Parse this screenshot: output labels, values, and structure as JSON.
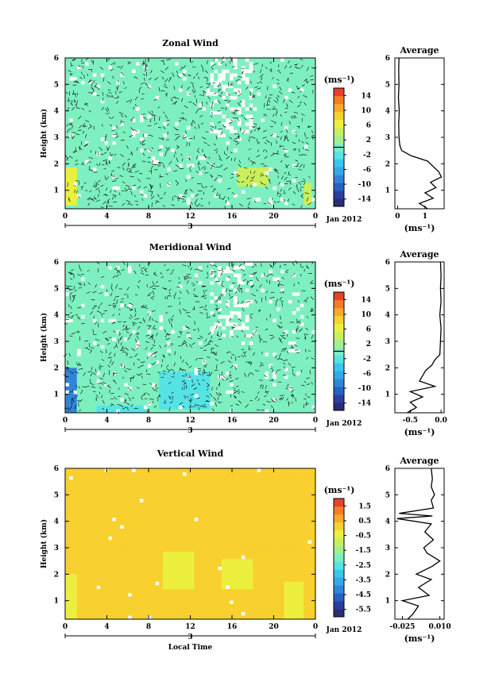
{
  "figure": {
    "x_axis_label": "Local Time",
    "date_label": "Jan 2012",
    "y_axis_label": "Height (km)",
    "average_title": "Average",
    "unit_label": "(ms⁻¹)"
  },
  "chart_data": [
    {
      "type": "heatmap",
      "title": "Zonal Wind",
      "xlabel": "",
      "ylabel": "Height (km)",
      "x_ticks": [
        "0",
        "4",
        "8",
        "12",
        "16",
        "20",
        "0"
      ],
      "day_label": "3",
      "date_label": "Jan 2012",
      "xlim": [
        0,
        24
      ],
      "ylim": [
        0.3,
        6.0
      ],
      "y_ticks": [
        "1",
        "2",
        "3",
        "4",
        "5",
        "6"
      ],
      "colorbar": {
        "unit": "(ms⁻¹)",
        "ticks": [
          "14",
          "10",
          "6",
          "2",
          "-2",
          "-6",
          "-10",
          "-14"
        ],
        "range": [
          -16,
          16
        ]
      },
      "dominant_value": 0,
      "patches": [
        {
          "t0": 0,
          "t1": 1.2,
          "h0": 0.4,
          "h1": 1.9,
          "value": 6
        },
        {
          "t0": 16.5,
          "t1": 19.5,
          "h0": 1.2,
          "h1": 1.9,
          "value": 5
        },
        {
          "t0": 22.8,
          "t1": 23.8,
          "h0": 0.4,
          "h1": 1.3,
          "value": 4
        },
        {
          "t0": 1,
          "t1": 2.5,
          "h0": 3.0,
          "h1": 4.3,
          "value": 0
        }
      ],
      "average": {
        "title": "Average",
        "xlabel": "(ms⁻¹)",
        "x_ticks": [
          "0",
          "1"
        ],
        "xlim": [
          -0.1,
          1.7
        ],
        "height": [
          0.3,
          0.5,
          0.7,
          0.9,
          1.1,
          1.3,
          1.5,
          1.7,
          1.9,
          2.1,
          2.3,
          2.5,
          2.7,
          3.0,
          3.5,
          4.0,
          4.5,
          5.0,
          5.5,
          6.0
        ],
        "value": [
          1.1,
          0.8,
          1.3,
          1.0,
          1.4,
          1.2,
          1.6,
          1.5,
          1.3,
          1.1,
          0.5,
          0.15,
          0.08,
          0.05,
          0.04,
          0.06,
          0.03,
          0.05,
          0.04,
          0.05
        ]
      }
    },
    {
      "type": "heatmap",
      "title": "Meridional Wind",
      "xlabel": "",
      "ylabel": "Height (km)",
      "x_ticks": [
        "0",
        "4",
        "8",
        "12",
        "16",
        "20",
        "0"
      ],
      "day_label": "3",
      "date_label": "Jan 2012",
      "xlim": [
        0,
        24
      ],
      "ylim": [
        0.3,
        6.0
      ],
      "y_ticks": [
        "1",
        "2",
        "3",
        "4",
        "5",
        "6"
      ],
      "colorbar": {
        "unit": "(ms⁻¹)",
        "ticks": [
          "14",
          "10",
          "6",
          "2",
          "-2",
          "-6",
          "-10",
          "-14"
        ],
        "range": [
          -16,
          16
        ]
      },
      "dominant_value": 0,
      "patches": [
        {
          "t0": 0,
          "t1": 1.2,
          "h0": 0.3,
          "h1": 2.0,
          "value": -8
        },
        {
          "t0": 9,
          "t1": 14,
          "h0": 0.4,
          "h1": 1.8,
          "value": -3
        },
        {
          "t0": 3,
          "t1": 8,
          "h0": 0.3,
          "h1": 0.6,
          "value": -3
        }
      ],
      "average": {
        "title": "Average",
        "xlabel": "(ms⁻¹)",
        "x_ticks": [
          "-0.5",
          "0.0"
        ],
        "xlim": [
          -0.75,
          0.05
        ],
        "height": [
          0.3,
          0.5,
          0.7,
          0.9,
          1.1,
          1.3,
          1.5,
          1.7,
          1.9,
          2.1,
          2.3,
          2.5,
          3.0,
          3.5,
          4.0,
          4.5,
          5.0,
          5.5,
          6.0
        ],
        "value": [
          -0.55,
          -0.4,
          -0.5,
          -0.3,
          -0.5,
          -0.1,
          -0.35,
          -0.3,
          -0.25,
          -0.15,
          -0.1,
          -0.02,
          -0.01,
          0.0,
          -0.02,
          0.0,
          -0.01,
          0.0,
          -0.01
        ]
      }
    },
    {
      "type": "heatmap",
      "title": "Vertical Wind",
      "xlabel": "Local Time",
      "ylabel": "Height (km)",
      "x_ticks": [
        "0",
        "4",
        "8",
        "12",
        "16",
        "20",
        "0"
      ],
      "day_label": "3",
      "date_label": "Jan 2012",
      "xlim": [
        0,
        24
      ],
      "ylim": [
        0.3,
        6.0
      ],
      "y_ticks": [
        "1",
        "2",
        "3",
        "4",
        "5",
        "6"
      ],
      "colorbar": {
        "unit": "(ms⁻¹)",
        "ticks": [
          "1.5",
          "0.5",
          "-0.5",
          "-1.5",
          "-2.5",
          "-3.5",
          "-4.5",
          "-5.5"
        ],
        "range": [
          -6,
          2
        ]
      },
      "dominant_value": 0.1,
      "patches": [
        {
          "t0": 0,
          "t1": 1.0,
          "h0": 0.3,
          "h1": 2.0,
          "value": -0.5
        },
        {
          "t0": 9.5,
          "t1": 12.5,
          "h0": 1.5,
          "h1": 2.8,
          "value": -0.4
        },
        {
          "t0": 15,
          "t1": 18,
          "h0": 1.5,
          "h1": 2.6,
          "value": -0.4
        },
        {
          "t0": 21,
          "t1": 23,
          "h0": 0.3,
          "h1": 1.7,
          "value": -0.4
        }
      ],
      "average": {
        "title": "Average",
        "xlabel": "(ms⁻¹)",
        "x_ticks": [
          "-0.025",
          "0.010"
        ],
        "xlim": [
          -0.032,
          0.014
        ],
        "height": [
          0.3,
          0.5,
          0.8,
          1.0,
          1.2,
          1.5,
          1.8,
          2.0,
          2.3,
          2.5,
          2.8,
          3.0,
          3.3,
          3.6,
          3.9,
          4.1,
          4.2,
          4.3,
          4.5,
          4.8,
          5.0,
          5.3,
          5.6,
          6.0
        ],
        "value": [
          -0.02,
          -0.015,
          -0.01,
          -0.025,
          0.0,
          -0.01,
          0.002,
          -0.012,
          0.003,
          0.01,
          -0.002,
          -0.005,
          0.004,
          -0.004,
          0.002,
          -0.03,
          0.003,
          -0.028,
          0.004,
          0.002,
          0.005,
          0.002,
          0.003,
          0.002
        ]
      }
    }
  ]
}
